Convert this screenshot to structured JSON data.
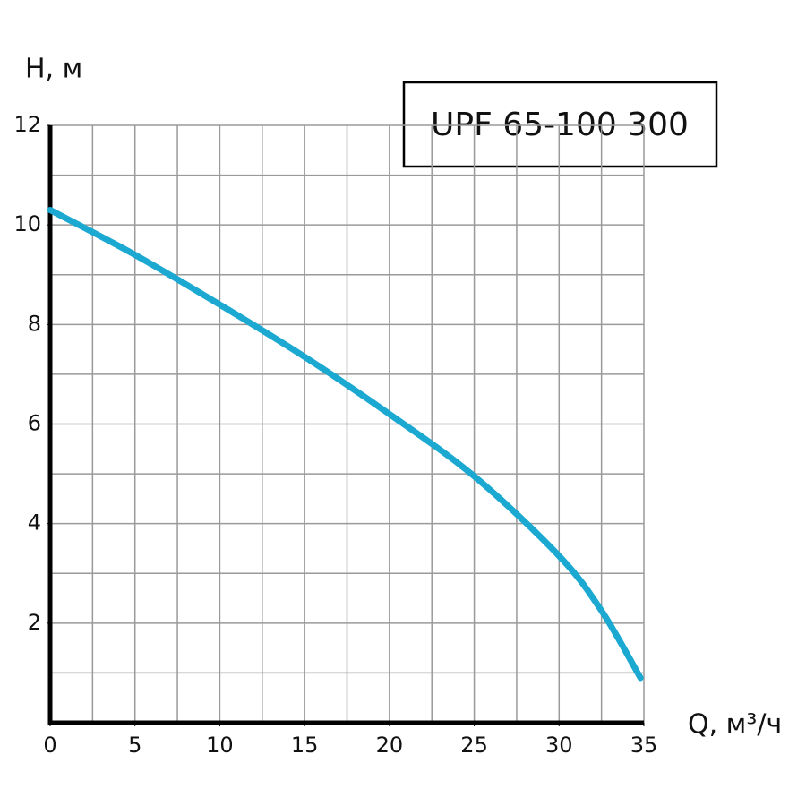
{
  "chart_data": {
    "type": "line",
    "title": "UPF 65-100 300",
    "y_label": "H, м",
    "x_label": "Q, м³/ч",
    "xlim": [
      0,
      35
    ],
    "ylim": [
      0,
      12
    ],
    "xticks": [
      0,
      5,
      10,
      15,
      20,
      25,
      30,
      35
    ],
    "yticks": [
      2,
      4,
      6,
      8,
      10,
      12
    ],
    "xgrid": [
      0,
      2.5,
      5,
      7.5,
      10,
      12.5,
      15,
      17.5,
      20,
      22.5,
      25,
      27.5,
      30,
      32.5,
      35
    ],
    "ygrid": [
      1,
      2,
      3,
      4,
      5,
      6,
      7,
      8,
      9,
      10,
      11,
      12
    ],
    "grid": true,
    "series": [
      {
        "name": "UPF 65-100 300",
        "color": "#1ba9d1",
        "x": [
          0,
          5,
          10,
          15,
          20,
          25,
          30,
          32.5,
          34.8
        ],
        "values": [
          10.3,
          9.4,
          8.4,
          7.35,
          6.2,
          4.95,
          3.35,
          2.25,
          0.9
        ]
      }
    ]
  }
}
